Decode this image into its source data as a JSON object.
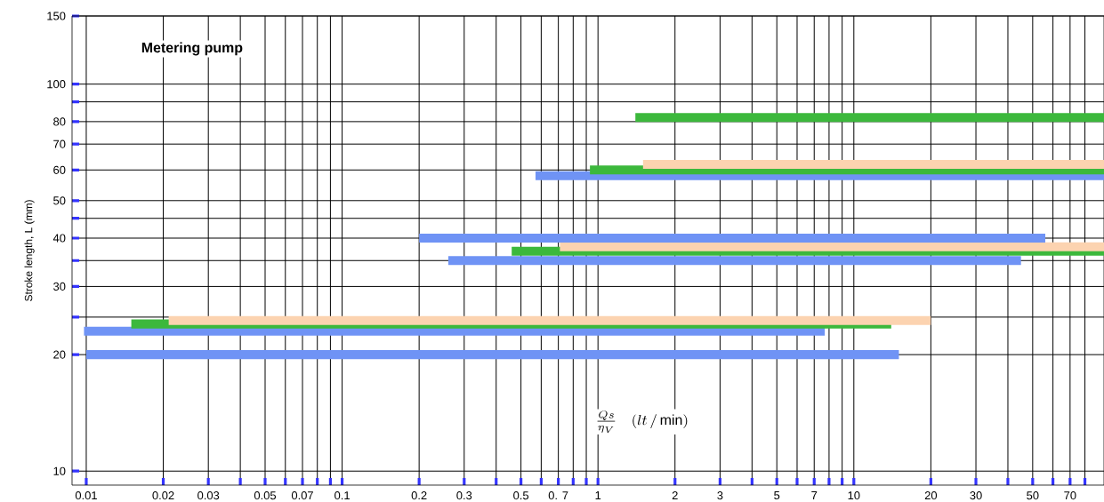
{
  "chart_data": {
    "type": "line",
    "title": "Metering pump",
    "xlabel": "\\frac{Qs}{\\eta_{V}}\\quad(lt\\,/\\,\\mathrm{min})",
    "ylabel": "Stroke length, L (mm)",
    "log": "xy",
    "grid": true,
    "marker": "none",
    "xlim": [
      0.0088,
      95
    ],
    "ylim": [
      9.2,
      150
    ],
    "xticks": [
      0.01,
      0.02,
      0.03,
      {
        "value": 0.04,
        "label": null
      },
      0.05,
      {
        "value": 0.06,
        "label": null
      },
      0.07,
      {
        "value": 0.08,
        "label": null
      },
      {
        "value": 0.09,
        "label": null
      },
      0.1,
      0.2,
      0.3,
      {
        "value": 0.4,
        "label": null
      },
      0.5,
      {
        "value": 0.6,
        "label": null
      },
      {
        "value": 0.7,
        "label": "0. 7"
      },
      {
        "value": 0.8,
        "label": null
      },
      {
        "value": 0.9,
        "label": null
      },
      1,
      2,
      3,
      {
        "value": 4,
        "label": null
      },
      5,
      {
        "value": 6,
        "label": null
      },
      7,
      {
        "value": 8,
        "label": null
      },
      {
        "value": 9,
        "label": null
      },
      10,
      20,
      30,
      {
        "value": 40,
        "label": null
      },
      50,
      {
        "value": 60,
        "label": null
      },
      70,
      {
        "value": 80,
        "label": null
      }
    ],
    "yticks": [
      10,
      20,
      {
        "value": 25,
        "label": null
      },
      30,
      {
        "value": 35,
        "label": null
      },
      40,
      {
        "value": 45,
        "label": null
      },
      50,
      60,
      70,
      80,
      {
        "value": 90,
        "label": null
      },
      100,
      150
    ],
    "series": [
      {
        "color": "#6f93f5",
        "x": [
          0.01,
          15
        ],
        "values": [
          20,
          20
        ]
      },
      {
        "color": "#6f93f5",
        "x": [
          0.0098,
          7.7
        ],
        "values": [
          23,
          23
        ]
      },
      {
        "color": "#3cb83c",
        "x": [
          0.015,
          14
        ],
        "values": [
          24,
          24
        ]
      },
      {
        "color": "#fcd3b0",
        "x": [
          0.021,
          20
        ],
        "values": [
          24.5,
          24.5
        ]
      },
      {
        "color": "#6f93f5",
        "x": [
          0.26,
          45
        ],
        "values": [
          35,
          35
        ]
      },
      {
        "color": "#3cb83c",
        "x": [
          0.46,
          95
        ],
        "values": [
          37,
          37
        ]
      },
      {
        "color": "#fcd3b0",
        "x": [
          0.71,
          95
        ],
        "values": [
          38,
          38
        ]
      },
      {
        "color": "#6f93f5",
        "x": [
          0.2,
          56
        ],
        "values": [
          40,
          40
        ]
      },
      {
        "color": "#6f93f5",
        "x": [
          0.57,
          95
        ],
        "values": [
          58,
          58
        ]
      },
      {
        "color": "#3cb83c",
        "x": [
          0.93,
          95
        ],
        "values": [
          60,
          60
        ]
      },
      {
        "color": "#fcd3b0",
        "x": [
          1.5,
          95
        ],
        "values": [
          62,
          62
        ]
      },
      {
        "color": "#3cb83c",
        "x": [
          1.4,
          95
        ],
        "values": [
          82,
          82
        ]
      }
    ]
  }
}
